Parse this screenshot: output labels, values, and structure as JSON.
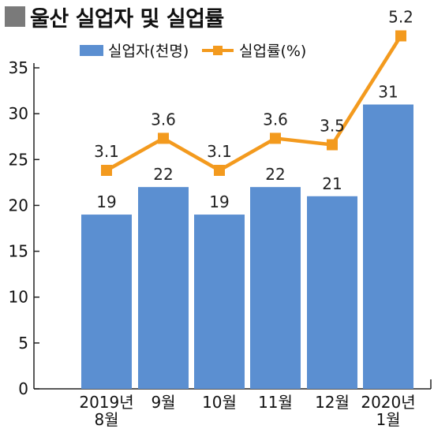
{
  "title": "울산 실업자 및 실업률",
  "legend": {
    "bars": "실업자(천명)",
    "line": "실업률(%)"
  },
  "colors": {
    "bar": "#5b8fd1",
    "line": "#f39a1e",
    "title_square": "#7a7a7a"
  },
  "chart_data": {
    "type": "bar",
    "categories": [
      [
        "2019년",
        "8월"
      ],
      [
        "9월"
      ],
      [
        "10월"
      ],
      [
        "11월"
      ],
      [
        "12월"
      ],
      [
        "2020년",
        "1월"
      ]
    ],
    "series": [
      {
        "name": "실업자(천명)",
        "type": "bar",
        "values": [
          19,
          22,
          19,
          22,
          21,
          31
        ]
      },
      {
        "name": "실업률(%)",
        "type": "line",
        "values": [
          3.1,
          3.6,
          3.1,
          3.6,
          3.5,
          5.2
        ]
      }
    ],
    "yticks": [
      "0",
      "5",
      "10",
      "15",
      "20",
      "25",
      "30",
      "35"
    ],
    "ylim": [
      0,
      35
    ],
    "bar_labels": [
      "19",
      "22",
      "19",
      "22",
      "21",
      "31"
    ],
    "rate_labels": [
      "3.1",
      "3.6",
      "3.1",
      "3.6",
      "3.5",
      "5.2"
    ],
    "grid": false,
    "legend_position": "top"
  }
}
